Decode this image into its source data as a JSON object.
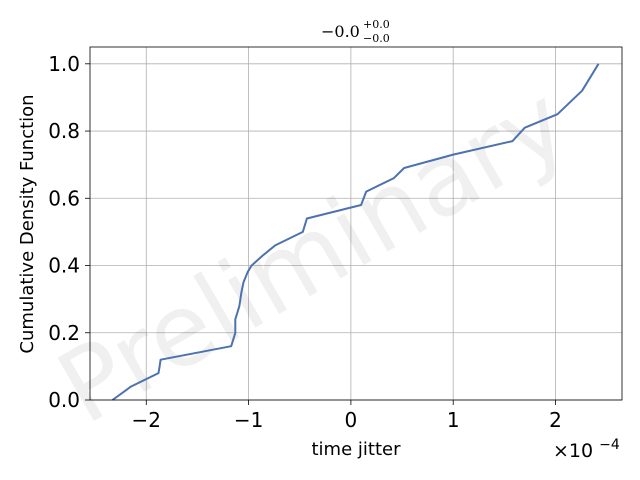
{
  "chart_data": {
    "type": "line",
    "title": {
      "base": "−0.0",
      "sup": "+0.0",
      "sub": "−0.0"
    },
    "watermark": "Preliminary",
    "xlabel": "time jitter",
    "ylabel": "Cumulative Density Function",
    "x_multiplier": {
      "base": "×10",
      "exp": "−4"
    },
    "xlim": [
      -2.55,
      2.65
    ],
    "ylim": [
      0.0,
      1.05
    ],
    "x_ticks": [
      -2,
      -1,
      0,
      1,
      2
    ],
    "x_tick_labels": [
      "−2",
      "−1",
      "0",
      "1",
      "2"
    ],
    "y_ticks": [
      0.0,
      0.2,
      0.4,
      0.6,
      0.8,
      1.0
    ],
    "y_tick_labels": [
      "0.0",
      "0.2",
      "0.4",
      "0.6",
      "0.8",
      "1.0"
    ],
    "grid": true,
    "line_color": "#4c72b0",
    "series": [
      {
        "x": [
          -2.33,
          -2.15,
          -1.88,
          -1.87,
          -1.86,
          -1.17,
          -1.13,
          -1.13,
          -1.09,
          -1.07,
          -1.05,
          -1.01,
          -0.97,
          -0.86,
          -0.74,
          -0.47,
          -0.43,
          0.1,
          0.15,
          0.42,
          0.52,
          1.0,
          1.58,
          1.7,
          2.02,
          2.26,
          2.34,
          2.42
        ],
        "y": [
          0.0,
          0.04,
          0.08,
          0.1,
          0.12,
          0.16,
          0.2,
          0.24,
          0.28,
          0.32,
          0.35,
          0.38,
          0.4,
          0.43,
          0.46,
          0.5,
          0.54,
          0.58,
          0.62,
          0.66,
          0.69,
          0.73,
          0.77,
          0.81,
          0.85,
          0.92,
          0.96,
          1.0
        ]
      }
    ]
  }
}
